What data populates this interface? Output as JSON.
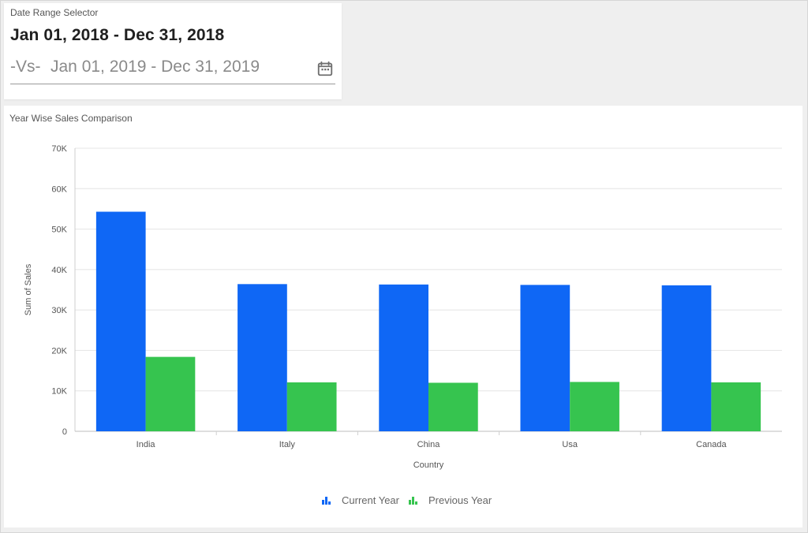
{
  "date_selector": {
    "label": "Date Range Selector",
    "primary_range": "Jan 01, 2018 - Dec 31, 2018",
    "compare_prefix": "-Vs-",
    "compare_range": "Jan 01, 2019 - Dec 31, 2019",
    "icon": "calendar-icon"
  },
  "chart_data": {
    "type": "bar",
    "title": "Year Wise Sales Comparison",
    "xlabel": "Country",
    "ylabel": "Sum of Sales",
    "categories": [
      "India",
      "Italy",
      "China",
      "Usa",
      "Canada"
    ],
    "series": [
      {
        "name": "Current Year",
        "color": "#0f67f5",
        "values": [
          54300,
          36400,
          36300,
          36200,
          36100
        ]
      },
      {
        "name": "Previous Year",
        "color": "#36c44f",
        "values": [
          18400,
          12100,
          12000,
          12200,
          12100
        ]
      }
    ],
    "ylim": [
      0,
      70000
    ],
    "yticks": [
      0,
      10000,
      20000,
      30000,
      40000,
      50000,
      60000,
      70000
    ],
    "ytick_labels": [
      "0",
      "10K",
      "20K",
      "30K",
      "40K",
      "50K",
      "60K",
      "70K"
    ],
    "grid": true,
    "legend_position": "bottom-center"
  }
}
